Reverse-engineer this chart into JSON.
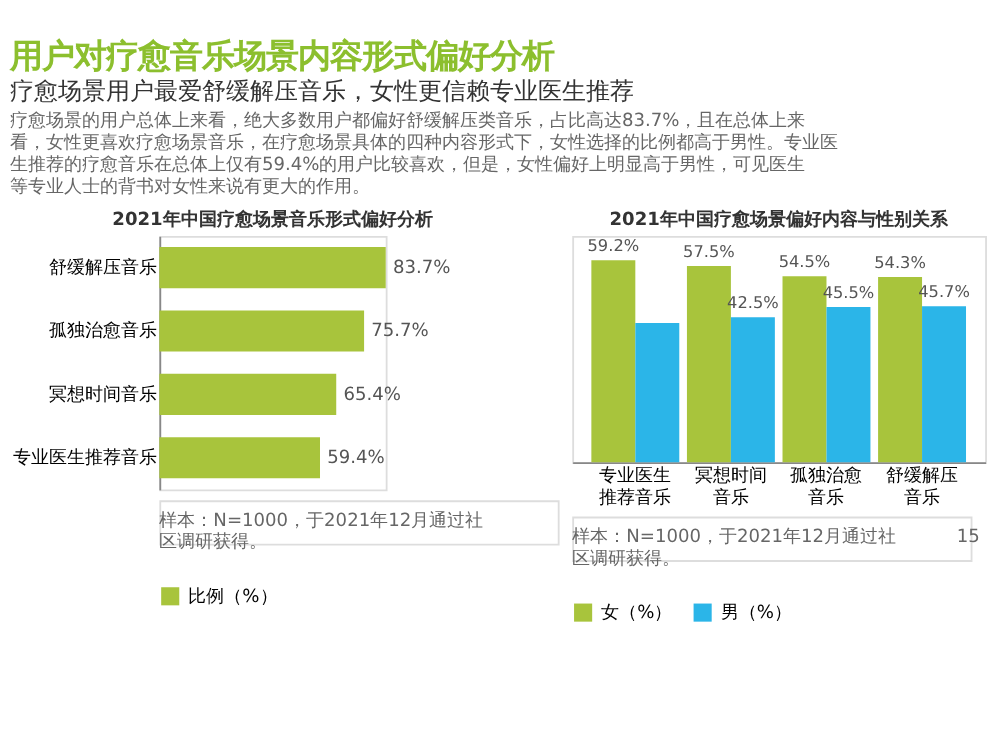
{
  "chart_data": [
    {
      "type": "bar",
      "orientation": "horizontal",
      "title": "2021年中国疗愈场景音乐形式偏好分析",
      "categories": [
        "舒缓解压音乐",
        "孤独治愈音乐",
        "冥想时间音乐",
        "专业医生推荐音乐"
      ],
      "series": [
        {
          "name": "比例（%）",
          "color": "#a8c43c",
          "values": [
            83.7,
            75.7,
            65.4,
            59.4
          ],
          "value_labels": [
            "83.7%",
            "75.7%",
            "65.4%",
            "59.4%"
          ]
        }
      ],
      "legend": "bottom",
      "annotations": [
        "用户对疗愈音乐场景内容形式偏好分析",
        "疗愈场景用户最爱舒缓解压音乐，女性更信赖专业医生推荐",
        "疗愈场景的用户总体上来看，绝大多数用户都偏好舒缓解压类音乐，占比高达83.7%，且在总体上来看，女性更喜欢疗愈场景音乐，在疗愈场景具体的四种内容形式下，女性选择的比例都高于男性。专业医生推荐的疗愈音乐在总体上仅有59.4%的用户比较喜欢，但是，女性偏好上明显高于男性，可见医生等专业人士的背书对女性来说有更大的作用。",
        "样本：N=1000，于2021年12月通过社区调研获得。"
      ]
    },
    {
      "type": "bar",
      "title": "2021年中国疗愈场景偏好内容与性别关系",
      "categories": [
        "专业医生推荐音乐",
        "冥想时间音乐",
        "孤独治愈音乐",
        "舒缓解压音乐"
      ],
      "series": [
        {
          "name": "女（%）",
          "color": "#a8c43c",
          "values": [
            59.2,
            57.5,
            54.5,
            54.3
          ],
          "value_labels": [
            "59.2%",
            "57.5%",
            "54.5%",
            "54.3%"
          ]
        },
        {
          "name": "男（%）",
          "color": "#2bb5e8",
          "values": [
            40.8,
            42.5,
            45.5,
            45.7
          ],
          "value_labels": [
            null,
            "42.5%",
            "45.5%",
            "45.7%"
          ]
        }
      ],
      "legend": "bottom",
      "annotations": [
        "样本：N=1000，于2021年12月通过社区调研获得。",
        "15"
      ]
    }
  ]
}
